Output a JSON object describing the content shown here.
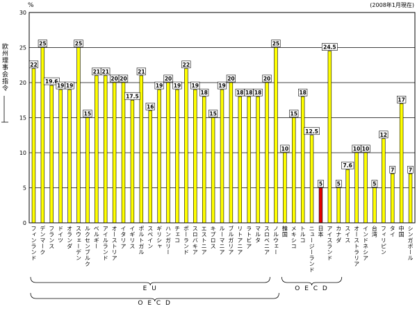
{
  "chart_data": {
    "type": "bar",
    "ylabel": "%",
    "annotation_date": "(2008年1月現在)",
    "y_axis_note": "欧州理事会指令",
    "ylim": [
      0,
      30
    ],
    "yticks": [
      0,
      5,
      10,
      15,
      20,
      25,
      30
    ],
    "grid": true,
    "bar_color": "#ffff00",
    "highlight_color": "#e00000",
    "highlight_category": "日本",
    "categories": [
      "フィンランド",
      "デンマーク",
      "フランス",
      "ドイツ",
      "オランダ",
      "スウェーデン",
      "ルクセンブルク",
      "ベルギー",
      "アイルランド",
      "オーストリア",
      "イタリア",
      "イギリス",
      "ポルトガル",
      "スペイン",
      "ギリシャ",
      "ハンガリー",
      "チェコ",
      "ポーランド",
      "スロバキア",
      "エストニア",
      "キプロス",
      "ルーマニア",
      "ブルガリア",
      "リトアニア",
      "ラトビア",
      "マルタ",
      "スロベニア",
      "ノルウェー",
      "韓国",
      "メキシコ",
      "トルコ",
      "ニュージーランド",
      "日本",
      "アイスランド",
      "カナダ",
      "スイス",
      "オーストラリア",
      "インドネシア",
      "台湾",
      "フィリピン",
      "タイ",
      "中国",
      "シンガポール"
    ],
    "values": [
      22,
      25,
      19.6,
      19,
      19,
      25,
      15,
      21,
      21,
      20,
      20,
      17.5,
      21,
      16,
      19,
      20,
      19,
      22,
      19,
      18,
      15,
      19,
      20,
      18,
      18,
      18,
      20,
      25,
      10,
      15,
      18,
      12.5,
      5,
      24.5,
      5,
      7.6,
      10,
      10,
      5,
      12,
      7,
      17,
      7
    ],
    "value_labels": [
      "22",
      "25",
      "19.6",
      "19",
      "19",
      "25",
      "15",
      "21",
      "21",
      "20",
      "20",
      "17.5",
      "21",
      "16",
      "19",
      "20",
      "19",
      "22",
      "19",
      "18",
      "15",
      "19",
      "20",
      "18",
      "18",
      "18",
      "20",
      "25",
      "10",
      "15",
      "18",
      "12.5",
      "5",
      "24.5",
      "5",
      "7.6",
      "10",
      "10",
      "5",
      "12",
      "7",
      "17",
      "7"
    ],
    "groups": [
      {
        "label": "E U",
        "from": "フィンランド",
        "to": "スロベニア"
      },
      {
        "label": "O E C D",
        "from": "フィンランド",
        "to": "ノルウェー"
      },
      {
        "label": "O E C D",
        "from": "韓国",
        "to": "カナダ"
      }
    ]
  }
}
